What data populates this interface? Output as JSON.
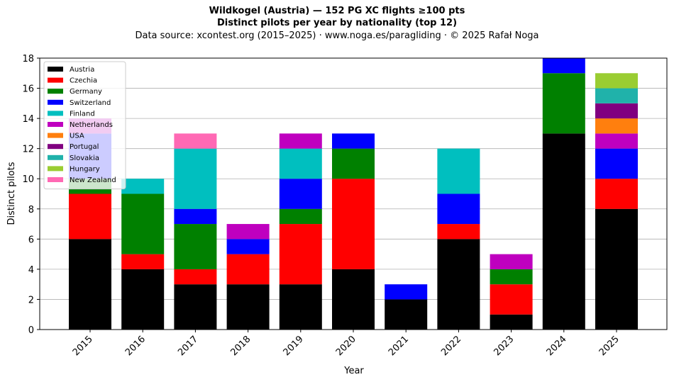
{
  "chart_data": {
    "type": "bar",
    "stacked": true,
    "title": "Wildkogel (Austria)  —  152 PG XC flights ≥100 pts",
    "subtitle": "Distinct pilots per year by nationality (top 12)",
    "source_note": "Data source: xcontest.org (2015–2025)  ·  www.noga.es/paragliding  ·  © 2025 Rafał Noga",
    "xlabel": "Year",
    "ylabel": "Distinct pilots",
    "ylim": [
      0,
      18
    ],
    "yticks": [
      0,
      2,
      4,
      6,
      8,
      10,
      12,
      14,
      16,
      18
    ],
    "grid": "y",
    "legend_position": "top-left",
    "categories": [
      "2015",
      "2016",
      "2017",
      "2018",
      "2019",
      "2020",
      "2021",
      "2022",
      "2023",
      "2024",
      "2025"
    ],
    "series": [
      {
        "name": "Austria",
        "color": "#000000",
        "values": [
          6,
          4,
          3,
          3,
          3,
          4,
          2,
          6,
          1,
          13,
          8
        ]
      },
      {
        "name": "Czechia",
        "color": "#ff0000",
        "values": [
          3,
          1,
          1,
          2,
          4,
          6,
          0,
          1,
          2,
          0,
          2
        ]
      },
      {
        "name": "Germany",
        "color": "#008000",
        "values": [
          1,
          4,
          3,
          0,
          1,
          2,
          0,
          0,
          1,
          4,
          0
        ]
      },
      {
        "name": "Switzerland",
        "color": "#0000ff",
        "values": [
          3,
          0,
          1,
          1,
          2,
          1,
          1,
          2,
          0,
          1,
          2
        ]
      },
      {
        "name": "Finland",
        "color": "#00bfbf",
        "values": [
          0,
          1,
          4,
          0,
          2,
          0,
          0,
          3,
          0,
          0,
          0
        ]
      },
      {
        "name": "Netherlands",
        "color": "#bf00bf",
        "values": [
          1,
          0,
          0,
          1,
          1,
          0,
          0,
          0,
          1,
          0,
          1
        ]
      },
      {
        "name": "USA",
        "color": "#ff7f0e",
        "values": [
          0,
          0,
          0,
          0,
          0,
          0,
          0,
          0,
          0,
          0,
          1
        ]
      },
      {
        "name": "Portugal",
        "color": "#800080",
        "values": [
          0,
          0,
          0,
          0,
          0,
          0,
          0,
          0,
          0,
          0,
          1
        ]
      },
      {
        "name": "Slovakia",
        "color": "#20b2aa",
        "values": [
          0,
          0,
          0,
          0,
          0,
          0,
          0,
          0,
          0,
          0,
          1
        ]
      },
      {
        "name": "Hungary",
        "color": "#9acd32",
        "values": [
          0,
          0,
          0,
          0,
          0,
          0,
          0,
          0,
          0,
          0,
          1
        ]
      },
      {
        "name": "New Zealand",
        "color": "#ff69b4",
        "values": [
          0,
          0,
          1,
          0,
          0,
          0,
          0,
          0,
          0,
          0,
          0
        ]
      }
    ]
  }
}
